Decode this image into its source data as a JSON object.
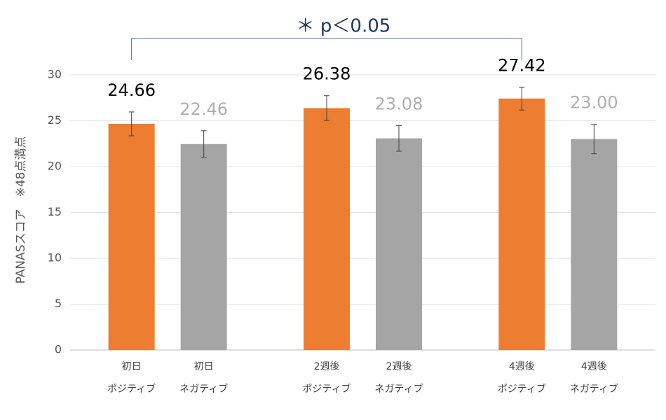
{
  "chart_data": {
    "type": "bar",
    "annotation": "＊ p＜0.05",
    "ylabel": "PANASスコア　※48点満点",
    "categories": [
      [
        "初日",
        "ポジティブ"
      ],
      [
        "初日",
        "ネガティブ"
      ],
      [
        "2週後",
        "ポジティブ"
      ],
      [
        "2週後",
        "ネガティブ"
      ],
      [
        "4週後",
        "ポジティブ"
      ],
      [
        "4週後",
        "ネガティブ"
      ]
    ],
    "values": [
      24.66,
      22.46,
      26.38,
      23.08,
      27.42,
      23.0
    ],
    "value_labels": [
      "24.66",
      "22.46",
      "26.38",
      "23.08",
      "27.42",
      "23.00"
    ],
    "errors": [
      1.3,
      1.45,
      1.35,
      1.4,
      1.25,
      1.6
    ],
    "colors": [
      "#ed7d31",
      "#a5a5a5",
      "#ed7d31",
      "#a5a5a5",
      "#ed7d31",
      "#a5a5a5"
    ],
    "value_label_colors": [
      "#000000",
      "#b0b0b0",
      "#000000",
      "#b0b0b0",
      "#000000",
      "#b0b0b0"
    ],
    "ylim": [
      0,
      30
    ],
    "yticks": [
      0,
      5,
      10,
      15,
      20,
      25,
      30
    ],
    "grid": true
  }
}
